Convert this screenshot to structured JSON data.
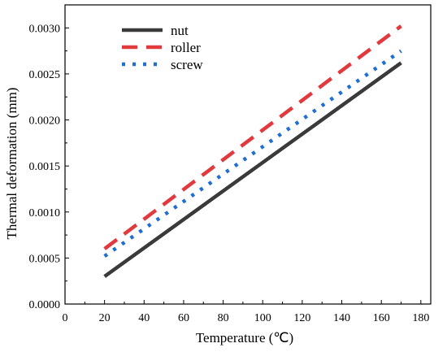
{
  "chart_data": {
    "type": "line",
    "xlabel": "Temperature (℃)",
    "ylabel": "Thermal deformation (mm)",
    "xlim": [
      0,
      185
    ],
    "ylim": [
      0,
      0.00325
    ],
    "x_ticks": [
      "0",
      "20",
      "40",
      "60",
      "80",
      "100",
      "120",
      "140",
      "160",
      "180"
    ],
    "y_ticks": [
      "0.0000",
      "0.0005",
      "0.0010",
      "0.0015",
      "0.0020",
      "0.0025",
      "0.0030"
    ],
    "grid": false,
    "legend_position": "top-left",
    "series": [
      {
        "name": "nut",
        "x": [
          20,
          170
        ],
        "y": [
          0.0003,
          0.00262
        ],
        "color": "#3a3a3a",
        "style": "solid"
      },
      {
        "name": "roller",
        "x": [
          20,
          170
        ],
        "y": [
          0.0006,
          0.00302
        ],
        "color": "#e03a3e",
        "style": "dashed"
      },
      {
        "name": "screw",
        "x": [
          20,
          170
        ],
        "y": [
          0.00052,
          0.00275
        ],
        "color": "#1f6fd1",
        "style": "dotted"
      }
    ]
  }
}
